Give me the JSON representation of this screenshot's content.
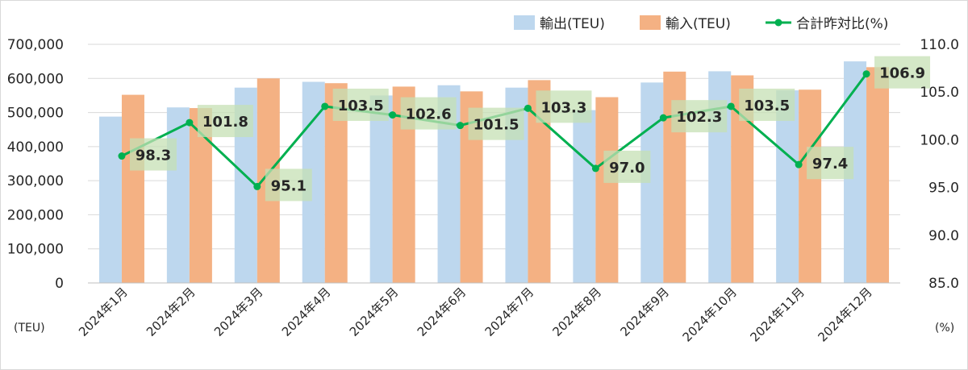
{
  "chart_data": {
    "type": "bar",
    "categories": [
      "2024年1月",
      "2024年2月",
      "2024年3月",
      "2024年4月",
      "2024年5月",
      "2024年6月",
      "2024年7月",
      "2024年8月",
      "2024年9月",
      "2024年10月",
      "2024年11月",
      "2024年12月"
    ],
    "series": [
      {
        "name": "輸出(TEU)",
        "type": "bar",
        "axis": "left",
        "color": "#bdd7ee",
        "values": [
          488000,
          515000,
          573000,
          590000,
          550000,
          580000,
          573000,
          507000,
          588000,
          621000,
          565000,
          650000
        ]
      },
      {
        "name": "輸入(TEU)",
        "type": "bar",
        "axis": "left",
        "color": "#f4b183",
        "values": [
          552000,
          513000,
          600000,
          586000,
          576000,
          562000,
          595000,
          545000,
          620000,
          609000,
          567000,
          633000
        ]
      },
      {
        "name": "合計昨対比(%)",
        "type": "line",
        "axis": "right",
        "color": "#00b050",
        "values": [
          98.3,
          101.8,
          95.1,
          103.5,
          102.6,
          101.5,
          103.3,
          97.0,
          102.3,
          103.5,
          97.4,
          106.9
        ],
        "labels": [
          "98.3",
          "101.8",
          "95.1",
          "103.5",
          "102.6",
          "101.5",
          "103.3",
          "97.0",
          "102.3",
          "103.5",
          "97.4",
          "106.9"
        ]
      }
    ],
    "left_axis": {
      "unit": "(TEU)",
      "range": [
        0,
        700000
      ],
      "ticks": [
        "0",
        "100,000",
        "200,000",
        "300,000",
        "400,000",
        "500,000",
        "600,000",
        "700,000"
      ]
    },
    "right_axis": {
      "unit": "(%)",
      "range": [
        85.0,
        110.0
      ],
      "ticks": [
        "85.0",
        "90.0",
        "95.0",
        "100.0",
        "105.0",
        "110.0"
      ]
    },
    "legend_position": "top-right",
    "grid": true,
    "colors": {
      "grid": "#d9d9d9",
      "label_bg": "#c6e0b4",
      "text": "#262626"
    }
  }
}
